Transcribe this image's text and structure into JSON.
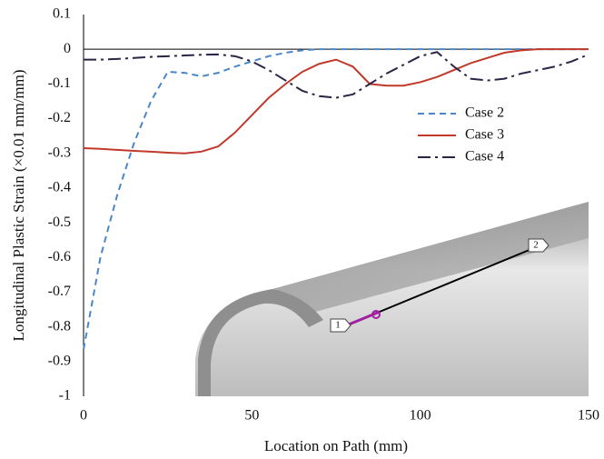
{
  "chart_data": {
    "type": "line",
    "x_label": "Location on Path (mm)",
    "y_label": "Longitudinal Plastic Strain (×0.01 mm/mm)",
    "x": [
      0,
      5,
      10,
      15,
      20,
      25,
      30,
      35,
      40,
      45,
      50,
      55,
      60,
      65,
      70,
      75,
      80,
      85,
      90,
      95,
      100,
      105,
      110,
      115,
      120,
      125,
      130,
      135,
      140,
      145,
      150
    ],
    "series": [
      {
        "name": "Case 2",
        "color": "#4a86c8",
        "dash": "dashed",
        "values": [
          -0.865,
          -0.6,
          -0.42,
          -0.27,
          -0.15,
          -0.065,
          -0.068,
          -0.078,
          -0.068,
          -0.05,
          -0.035,
          -0.02,
          -0.01,
          -0.003,
          0,
          0,
          0,
          0,
          0,
          0,
          0,
          0,
          0,
          0,
          0,
          0,
          0,
          0,
          0,
          0,
          0
        ]
      },
      {
        "name": "Case 3",
        "color": "#c0392b",
        "dash": "solid",
        "values": [
          -0.285,
          -0.287,
          -0.29,
          -0.293,
          -0.295,
          -0.298,
          -0.3,
          -0.295,
          -0.28,
          -0.24,
          -0.19,
          -0.14,
          -0.1,
          -0.065,
          -0.042,
          -0.03,
          -0.05,
          -0.1,
          -0.105,
          -0.105,
          -0.095,
          -0.08,
          -0.06,
          -0.04,
          -0.025,
          -0.01,
          -0.003,
          0,
          0,
          0,
          0
        ]
      },
      {
        "name": "Case 4",
        "color": "#2b2545",
        "dash": "dashdot",
        "values": [
          -0.03,
          -0.03,
          -0.028,
          -0.025,
          -0.022,
          -0.02,
          -0.018,
          -0.016,
          -0.015,
          -0.02,
          -0.035,
          -0.06,
          -0.09,
          -0.12,
          -0.135,
          -0.14,
          -0.13,
          -0.1,
          -0.07,
          -0.045,
          -0.02,
          -0.008,
          -0.05,
          -0.085,
          -0.09,
          -0.085,
          -0.07,
          -0.06,
          -0.05,
          -0.035,
          -0.015
        ]
      }
    ],
    "xlim": [
      0,
      150
    ],
    "xticks": [
      0,
      50,
      100,
      150
    ],
    "ylim": [
      -1,
      0.1
    ],
    "yticks": [
      0.1,
      0,
      -0.1,
      -0.2,
      -0.3,
      -0.4,
      -0.5,
      -0.6,
      -0.7,
      -0.8,
      -0.9,
      -1
    ],
    "legend": "upper right",
    "grid": false,
    "annotations": [
      "1",
      "2"
    ]
  }
}
